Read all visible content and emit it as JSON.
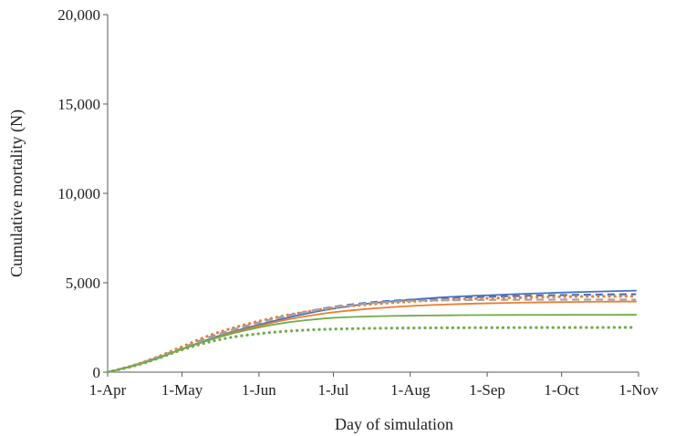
{
  "chart_data": {
    "type": "line",
    "title": "",
    "xlabel": "Day of simulation",
    "ylabel": "Cumulative mortality (N)",
    "ylim": [
      0,
      20000
    ],
    "yticks": [
      0,
      5000,
      10000,
      15000,
      20000
    ],
    "ytick_labels": [
      "0",
      "5,000",
      "10,000",
      "15,000",
      "20,000"
    ],
    "xlim": [
      "2000-04-01",
      "2000-11-01"
    ],
    "xticks": [
      "2000-04-01",
      "2000-05-01",
      "2000-06-01",
      "2000-07-01",
      "2000-08-01",
      "2000-09-01",
      "2000-10-01",
      "2000-11-01"
    ],
    "xtick_labels": [
      "1-Apr",
      "1-May",
      "1-Jun",
      "1-Jul",
      "1-Aug",
      "1-Sep",
      "1-Oct",
      "1-Nov"
    ],
    "grid": false,
    "legend": "none",
    "x": [
      "2000-04-01",
      "2000-04-11",
      "2000-04-21",
      "2000-05-01",
      "2000-05-11",
      "2000-05-21",
      "2000-06-01",
      "2000-06-11",
      "2000-06-21",
      "2000-07-01",
      "2000-07-16",
      "2000-08-01",
      "2000-08-16",
      "2000-09-01",
      "2000-09-16",
      "2000-10-01",
      "2000-10-16",
      "2000-10-31"
    ],
    "series": [
      {
        "color": "#4472c4",
        "style": "solid",
        "values": [
          0,
          350,
          800,
          1300,
          1800,
          2250,
          2650,
          3000,
          3300,
          3550,
          3850,
          4050,
          4200,
          4300,
          4380,
          4450,
          4510,
          4560
        ]
      },
      {
        "color": "#4472c4",
        "style": "dashed",
        "values": [
          0,
          360,
          830,
          1350,
          1900,
          2350,
          2780,
          3120,
          3400,
          3650,
          3900,
          4050,
          4150,
          4220,
          4270,
          4310,
          4340,
          4360
        ]
      },
      {
        "color": "#ed7d31",
        "style": "solid",
        "values": [
          0,
          340,
          780,
          1280,
          1750,
          2200,
          2580,
          2900,
          3150,
          3350,
          3550,
          3700,
          3790,
          3850,
          3890,
          3920,
          3940,
          3950
        ]
      },
      {
        "color": "#ed7d31",
        "style": "dotted",
        "values": [
          0,
          360,
          850,
          1420,
          2000,
          2450,
          2850,
          3150,
          3400,
          3600,
          3800,
          3950,
          4050,
          4130,
          4180,
          4220,
          4240,
          4250
        ]
      },
      {
        "color": "#a5a5a5",
        "style": "dashed",
        "values": [
          0,
          355,
          820,
          1340,
          1870,
          2330,
          2760,
          3100,
          3380,
          3620,
          3850,
          3980,
          4020,
          4040,
          4050,
          4055,
          4058,
          4060
        ]
      },
      {
        "color": "#70ad47",
        "style": "solid",
        "values": [
          0,
          330,
          760,
          1300,
          1750,
          2150,
          2500,
          2750,
          2920,
          3040,
          3120,
          3160,
          3180,
          3195,
          3200,
          3205,
          3208,
          3210
        ]
      },
      {
        "color": "#70ad47",
        "style": "dotted",
        "values": [
          0,
          320,
          750,
          1250,
          1650,
          1950,
          2150,
          2280,
          2360,
          2410,
          2450,
          2470,
          2480,
          2488,
          2492,
          2495,
          2497,
          2500
        ]
      }
    ]
  }
}
